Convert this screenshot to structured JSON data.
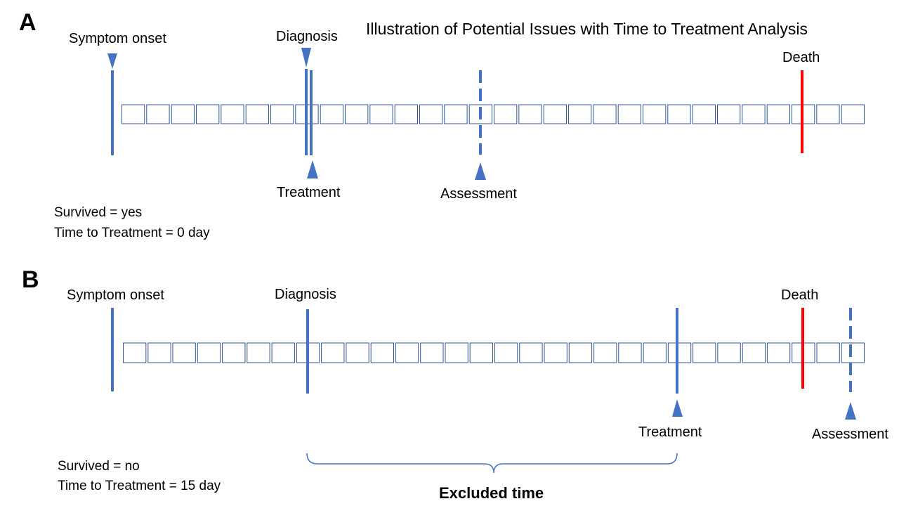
{
  "title": "Illustration of Potential Issues with Time to Treatment Analysis",
  "colors": {
    "timeline_blue": "#4472c4",
    "cell_border": "#2f5597",
    "death_red": "#ff0000",
    "marker_blue": "#4472c4"
  },
  "panel_a": {
    "letter": "A",
    "labels": {
      "symptom_onset": "Symptom onset",
      "diagnosis": "Diagnosis",
      "treatment": "Treatment",
      "assessment": "Assessment",
      "death": "Death"
    },
    "survived": "Survived = yes",
    "time_to_treatment": "Time to Treatment = 0 day",
    "num_cells": 30,
    "events_cell_index": {
      "symptom_onset": -0.4,
      "diagnosis": 7.5,
      "treatment": 7.7,
      "assessment": 14.3,
      "death": 27.5
    }
  },
  "panel_b": {
    "letter": "B",
    "labels": {
      "symptom_onset": "Symptom onset",
      "diagnosis": "Diagnosis",
      "treatment": "Treatment",
      "assessment": "Assessment",
      "death": "Death"
    },
    "survived": "Survived = no",
    "time_to_treatment": "Time to Treatment = 15 day",
    "excluded_time": "Excluded time",
    "num_cells": 30,
    "events_cell_index": {
      "symptom_onset": -0.4,
      "diagnosis": 7.5,
      "treatment": 22.5,
      "death": 27.5,
      "assessment": 29.4
    }
  }
}
